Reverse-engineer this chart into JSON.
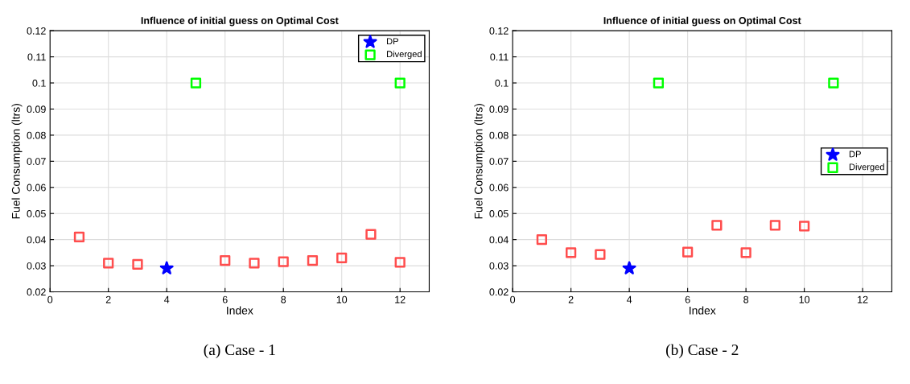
{
  "chart_data": [
    {
      "type": "scatter",
      "title": "Influence of initial guess on Optimal Cost",
      "xlabel": "Index",
      "ylabel": "Fuel Consumption (ltrs)",
      "xlim": [
        0,
        13
      ],
      "xticks": [
        0,
        2,
        4,
        6,
        8,
        10,
        12
      ],
      "ylim": [
        0.02,
        0.12
      ],
      "yticks": [
        0.02,
        0.03,
        0.04,
        0.05,
        0.06,
        0.07,
        0.08,
        0.09,
        0.1,
        0.11,
        0.12
      ],
      "grid": true,
      "legend": "top right",
      "annotations": [
        "(a) Case - 1"
      ],
      "series": [
        {
          "color": "#ff4d4d",
          "marker": "square",
          "x": [
            1,
            2,
            3,
            6,
            7,
            8,
            9,
            10,
            11,
            12
          ],
          "values": [
            0.041,
            0.031,
            0.0305,
            0.032,
            0.031,
            0.0315,
            0.032,
            0.033,
            0.042,
            0.0313
          ]
        },
        {
          "name": "DP",
          "color": "#0000ff",
          "marker": "star",
          "x": [
            4
          ],
          "values": [
            0.029
          ]
        },
        {
          "name": "Diverged",
          "color": "#00ff00",
          "marker": "square",
          "x": [
            5,
            12
          ],
          "values": [
            0.1,
            0.1
          ]
        }
      ]
    },
    {
      "type": "scatter",
      "title": "Influence of initial guess on Optimal Cost",
      "xlabel": "Index",
      "ylabel": "Fuel Consumption (ltrs)",
      "xlim": [
        0,
        13
      ],
      "xticks": [
        0,
        2,
        4,
        6,
        8,
        10,
        12
      ],
      "ylim": [
        0.02,
        0.12
      ],
      "yticks": [
        0.02,
        0.03,
        0.04,
        0.05,
        0.06,
        0.07,
        0.08,
        0.09,
        0.1,
        0.11,
        0.12
      ],
      "grid": true,
      "legend": "right",
      "annotations": [
        "(b) Case - 2"
      ],
      "series": [
        {
          "color": "#ff4d4d",
          "marker": "square",
          "x": [
            1,
            2,
            3,
            6,
            7,
            8,
            9,
            10
          ],
          "values": [
            0.04,
            0.035,
            0.0343,
            0.0352,
            0.0455,
            0.035,
            0.0455,
            0.0452
          ]
        },
        {
          "name": "DP",
          "color": "#0000ff",
          "marker": "star",
          "x": [
            4
          ],
          "values": [
            0.029
          ]
        },
        {
          "name": "Diverged",
          "color": "#00ff00",
          "marker": "square",
          "x": [
            5,
            11
          ],
          "values": [
            0.1,
            0.1
          ]
        }
      ]
    }
  ]
}
